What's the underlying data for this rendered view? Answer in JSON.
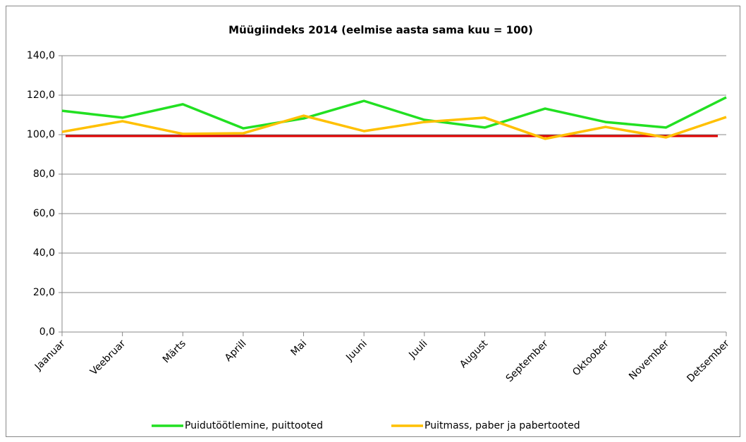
{
  "chart_data": {
    "type": "line",
    "title": "Müügiindeks 2014 (eelmise aasta sama kuu = 100)",
    "categories": [
      "Jaanuar",
      "Veebruar",
      "Märts",
      "Aprill",
      "Mai",
      "Juuni",
      "Juuli",
      "August",
      "September",
      "Oktoober",
      "November",
      "Detsember"
    ],
    "series": [
      {
        "name": "Puidutöötlemine, puittooted",
        "color": "#22e022",
        "values": [
          112.1,
          108.6,
          115.4,
          103.2,
          108.2,
          117.1,
          107.5,
          103.6,
          113.2,
          106.4,
          103.6,
          118.9
        ]
      },
      {
        "name": "Puitmass, paber ja pabertooted",
        "color": "#ffc000",
        "values": [
          101.4,
          106.8,
          100.4,
          100.7,
          109.6,
          101.8,
          106.4,
          108.6,
          97.9,
          103.9,
          98.6,
          108.9
        ]
      }
    ],
    "reference_line": {
      "value": 99.3,
      "color": "#e00000"
    },
    "ylim": [
      0,
      140
    ],
    "yticks": [
      {
        "value": 0,
        "label": "0,0"
      },
      {
        "value": 20,
        "label": "20,0"
      },
      {
        "value": 40,
        "label": "40,0"
      },
      {
        "value": 60,
        "label": "60,0"
      },
      {
        "value": 80,
        "label": "80,0"
      },
      {
        "value": 100,
        "label": "100,0"
      },
      {
        "value": 120,
        "label": "120,0"
      },
      {
        "value": 140,
        "label": "140,0"
      }
    ],
    "grid": true,
    "legend": "bottom"
  }
}
